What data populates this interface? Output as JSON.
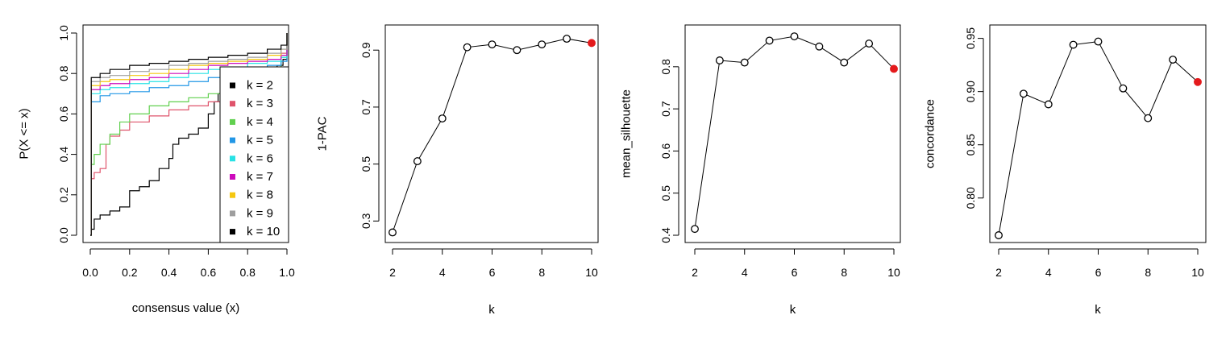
{
  "chart_data": [
    {
      "type": "line",
      "xlabel": "consensus value (x)",
      "ylabel": "P(X <= x)",
      "xlim": [
        0,
        1
      ],
      "ylim": [
        0,
        1
      ],
      "xticks": [
        "0.0",
        "0.2",
        "0.4",
        "0.6",
        "0.8",
        "1.0"
      ],
      "yticks": [
        "0.0",
        "0.2",
        "0.4",
        "0.6",
        "0.8",
        "1.0"
      ],
      "legend_position": "bottom-right",
      "series": [
        {
          "name": "k = 2",
          "color": "#000000",
          "points": [
            [
              0,
              0
            ],
            [
              0.005,
              0.03
            ],
            [
              0.02,
              0.08
            ],
            [
              0.05,
              0.1
            ],
            [
              0.1,
              0.12
            ],
            [
              0.15,
              0.14
            ],
            [
              0.2,
              0.22
            ],
            [
              0.25,
              0.24
            ],
            [
              0.3,
              0.27
            ],
            [
              0.35,
              0.33
            ],
            [
              0.4,
              0.38
            ],
            [
              0.42,
              0.45
            ],
            [
              0.45,
              0.48
            ],
            [
              0.5,
              0.5
            ],
            [
              0.55,
              0.53
            ],
            [
              0.6,
              0.6
            ],
            [
              0.63,
              0.66
            ],
            [
              0.65,
              0.7
            ],
            [
              0.7,
              0.73
            ],
            [
              0.75,
              0.76
            ],
            [
              0.8,
              0.78
            ],
            [
              0.85,
              0.8
            ],
            [
              0.9,
              0.82
            ],
            [
              0.95,
              0.84
            ],
            [
              0.98,
              0.87
            ],
            [
              1,
              1
            ]
          ]
        },
        {
          "name": "k = 3",
          "color": "#DF536B",
          "points": [
            [
              0,
              0
            ],
            [
              0.005,
              0.28
            ],
            [
              0.02,
              0.31
            ],
            [
              0.05,
              0.33
            ],
            [
              0.08,
              0.45
            ],
            [
              0.1,
              0.49
            ],
            [
              0.15,
              0.52
            ],
            [
              0.2,
              0.56
            ],
            [
              0.3,
              0.59
            ],
            [
              0.4,
              0.62
            ],
            [
              0.5,
              0.64
            ],
            [
              0.6,
              0.66
            ],
            [
              0.7,
              0.68
            ],
            [
              0.8,
              0.72
            ],
            [
              0.85,
              0.75
            ],
            [
              0.9,
              0.78
            ],
            [
              0.93,
              0.8
            ],
            [
              0.97,
              0.9
            ],
            [
              1,
              1
            ]
          ]
        },
        {
          "name": "k = 4",
          "color": "#61D04F",
          "points": [
            [
              0,
              0
            ],
            [
              0.005,
              0.35
            ],
            [
              0.02,
              0.4
            ],
            [
              0.05,
              0.45
            ],
            [
              0.1,
              0.5
            ],
            [
              0.15,
              0.56
            ],
            [
              0.2,
              0.6
            ],
            [
              0.3,
              0.64
            ],
            [
              0.4,
              0.66
            ],
            [
              0.5,
              0.68
            ],
            [
              0.6,
              0.7
            ],
            [
              0.7,
              0.72
            ],
            [
              0.8,
              0.76
            ],
            [
              0.9,
              0.82
            ],
            [
              0.97,
              0.88
            ],
            [
              1,
              1
            ]
          ]
        },
        {
          "name": "k = 5",
          "color": "#2297E6",
          "points": [
            [
              0,
              0
            ],
            [
              0.005,
              0.66
            ],
            [
              0.05,
              0.69
            ],
            [
              0.1,
              0.7
            ],
            [
              0.2,
              0.71
            ],
            [
              0.3,
              0.73
            ],
            [
              0.4,
              0.74
            ],
            [
              0.5,
              0.76
            ],
            [
              0.6,
              0.78
            ],
            [
              0.7,
              0.8
            ],
            [
              0.8,
              0.82
            ],
            [
              0.9,
              0.84
            ],
            [
              0.97,
              0.86
            ],
            [
              1,
              1
            ]
          ]
        },
        {
          "name": "k = 6",
          "color": "#28E2E5",
          "points": [
            [
              0,
              0
            ],
            [
              0.005,
              0.7
            ],
            [
              0.05,
              0.72
            ],
            [
              0.1,
              0.73
            ],
            [
              0.2,
              0.75
            ],
            [
              0.3,
              0.76
            ],
            [
              0.4,
              0.78
            ],
            [
              0.5,
              0.8
            ],
            [
              0.6,
              0.82
            ],
            [
              0.7,
              0.83
            ],
            [
              0.8,
              0.85
            ],
            [
              0.9,
              0.86
            ],
            [
              0.97,
              0.88
            ],
            [
              1,
              1
            ]
          ]
        },
        {
          "name": "k = 7",
          "color": "#CD0BBC",
          "points": [
            [
              0,
              0
            ],
            [
              0.005,
              0.72
            ],
            [
              0.05,
              0.74
            ],
            [
              0.1,
              0.75
            ],
            [
              0.2,
              0.77
            ],
            [
              0.3,
              0.78
            ],
            [
              0.4,
              0.8
            ],
            [
              0.5,
              0.82
            ],
            [
              0.6,
              0.84
            ],
            [
              0.7,
              0.85
            ],
            [
              0.8,
              0.86
            ],
            [
              0.9,
              0.87
            ],
            [
              0.97,
              0.89
            ],
            [
              1,
              1
            ]
          ]
        },
        {
          "name": "k = 8",
          "color": "#F5C710",
          "points": [
            [
              0,
              0
            ],
            [
              0.005,
              0.74
            ],
            [
              0.05,
              0.76
            ],
            [
              0.1,
              0.77
            ],
            [
              0.2,
              0.79
            ],
            [
              0.3,
              0.8
            ],
            [
              0.4,
              0.82
            ],
            [
              0.5,
              0.84
            ],
            [
              0.6,
              0.85
            ],
            [
              0.7,
              0.86
            ],
            [
              0.8,
              0.87
            ],
            [
              0.9,
              0.89
            ],
            [
              0.97,
              0.92
            ],
            [
              1,
              1
            ]
          ]
        },
        {
          "name": "k = 9",
          "color": "#9E9E9E",
          "points": [
            [
              0,
              0
            ],
            [
              0.005,
              0.76
            ],
            [
              0.05,
              0.78
            ],
            [
              0.1,
              0.79
            ],
            [
              0.2,
              0.81
            ],
            [
              0.3,
              0.82
            ],
            [
              0.4,
              0.84
            ],
            [
              0.5,
              0.85
            ],
            [
              0.6,
              0.86
            ],
            [
              0.7,
              0.87
            ],
            [
              0.8,
              0.88
            ],
            [
              0.9,
              0.9
            ],
            [
              0.97,
              0.92
            ],
            [
              1,
              1
            ]
          ]
        },
        {
          "name": "k = 10",
          "color": "#000000",
          "points": [
            [
              0,
              0
            ],
            [
              0.005,
              0.78
            ],
            [
              0.05,
              0.8
            ],
            [
              0.1,
              0.82
            ],
            [
              0.2,
              0.84
            ],
            [
              0.3,
              0.85
            ],
            [
              0.4,
              0.86
            ],
            [
              0.5,
              0.87
            ],
            [
              0.6,
              0.88
            ],
            [
              0.7,
              0.89
            ],
            [
              0.8,
              0.9
            ],
            [
              0.9,
              0.92
            ],
            [
              0.97,
              0.94
            ],
            [
              1,
              1
            ]
          ]
        }
      ]
    },
    {
      "type": "line",
      "xlabel": "k",
      "ylabel": "1-PAC",
      "xlim": [
        2,
        10
      ],
      "ylim": [
        0.25,
        0.96
      ],
      "xticks": [
        2,
        4,
        6,
        8,
        10
      ],
      "yticks": [
        0.3,
        0.5,
        0.7,
        0.9
      ],
      "x": [
        2,
        3,
        4,
        5,
        6,
        7,
        8,
        9,
        10
      ],
      "values": [
        0.26,
        0.51,
        0.66,
        0.91,
        0.92,
        0.9,
        0.92,
        0.94,
        0.925
      ],
      "highlight_index": 8,
      "highlight_color": "#E41A1C"
    },
    {
      "type": "line",
      "xlabel": "k",
      "ylabel": "mean_silhouette",
      "xlim": [
        2,
        10
      ],
      "ylim": [
        0.4,
        0.88
      ],
      "xticks": [
        2,
        4,
        6,
        8,
        10
      ],
      "yticks": [
        0.4,
        0.5,
        0.6,
        0.7,
        0.8
      ],
      "x": [
        2,
        3,
        4,
        5,
        6,
        7,
        8,
        9,
        10
      ],
      "values": [
        0.415,
        0.815,
        0.81,
        0.862,
        0.872,
        0.848,
        0.81,
        0.855,
        0.795
      ],
      "highlight_index": 8,
      "highlight_color": "#E41A1C"
    },
    {
      "type": "line",
      "xlabel": "k",
      "ylabel": "concordance",
      "xlim": [
        2,
        10
      ],
      "ylim": [
        0.765,
        0.955
      ],
      "xticks": [
        2,
        4,
        6,
        8,
        10
      ],
      "yticks": [
        0.8,
        0.85,
        0.9,
        0.95
      ],
      "yticklabels": [
        "0.80",
        "0.85",
        "0.90",
        "0.95"
      ],
      "x": [
        2,
        3,
        4,
        5,
        6,
        7,
        8,
        9,
        10
      ],
      "values": [
        0.765,
        0.898,
        0.888,
        0.944,
        0.947,
        0.903,
        0.875,
        0.93,
        0.909
      ],
      "highlight_index": 8,
      "highlight_color": "#E41A1C"
    }
  ]
}
